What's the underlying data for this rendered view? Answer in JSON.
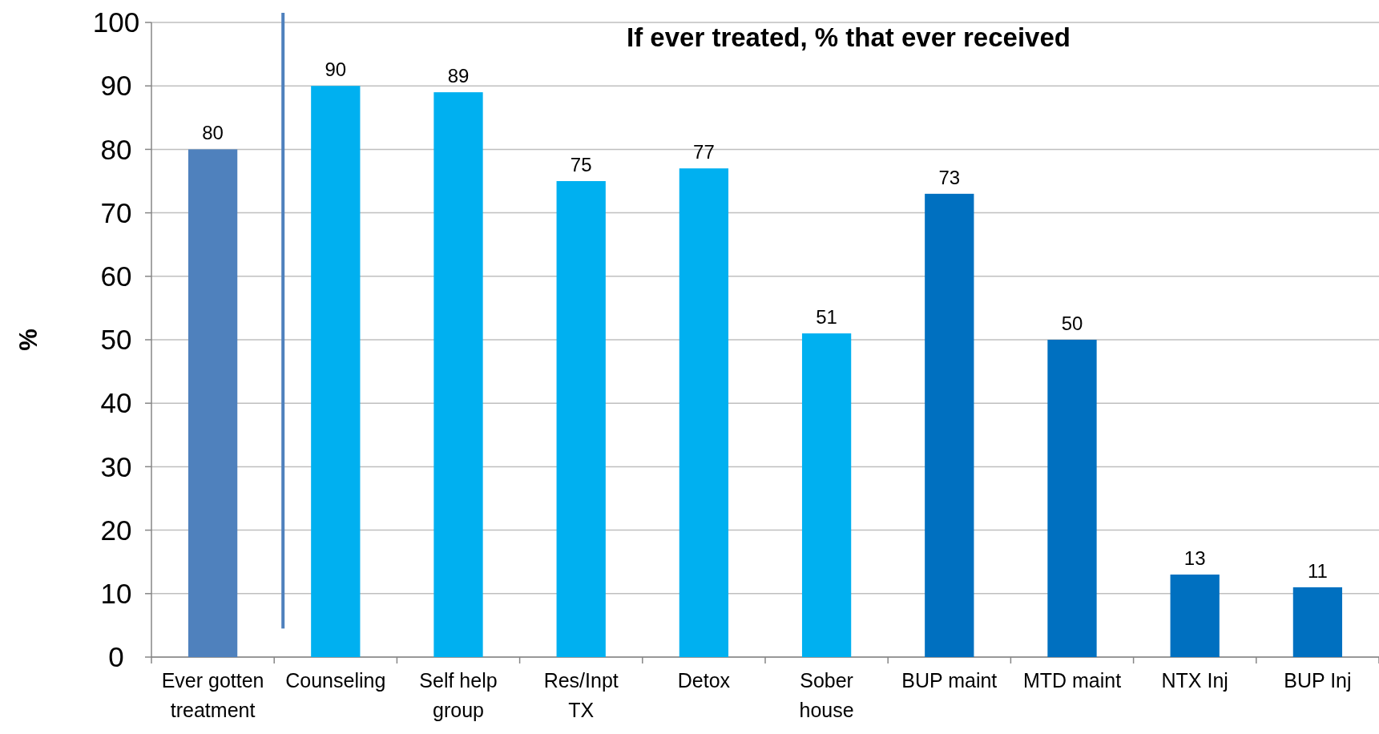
{
  "chart_data": {
    "type": "bar",
    "title": "If ever treated, % that ever received",
    "ylabel": "%",
    "categories": [
      "Ever gotten\ntreatment",
      "Counseling",
      "Self help\ngroup",
      "Res/Inpt\nTX",
      "Detox",
      "Sober\nhouse",
      "BUP maint",
      "MTD maint",
      "NTX Inj",
      "BUP Inj"
    ],
    "values": [
      80,
      90,
      89,
      75,
      77,
      51,
      73,
      50,
      13,
      11
    ],
    "colors": [
      "#4f81bd",
      "#00b0f0",
      "#00b0f0",
      "#00b0f0",
      "#00b0f0",
      "#00b0f0",
      "#0070c0",
      "#0070c0",
      "#0070c0",
      "#0070c0"
    ],
    "ylim": [
      0,
      100
    ],
    "yticks": [
      0,
      10,
      20,
      30,
      40,
      50,
      60,
      70,
      80,
      90,
      100
    ],
    "grid": "y",
    "data_labels": true
  }
}
